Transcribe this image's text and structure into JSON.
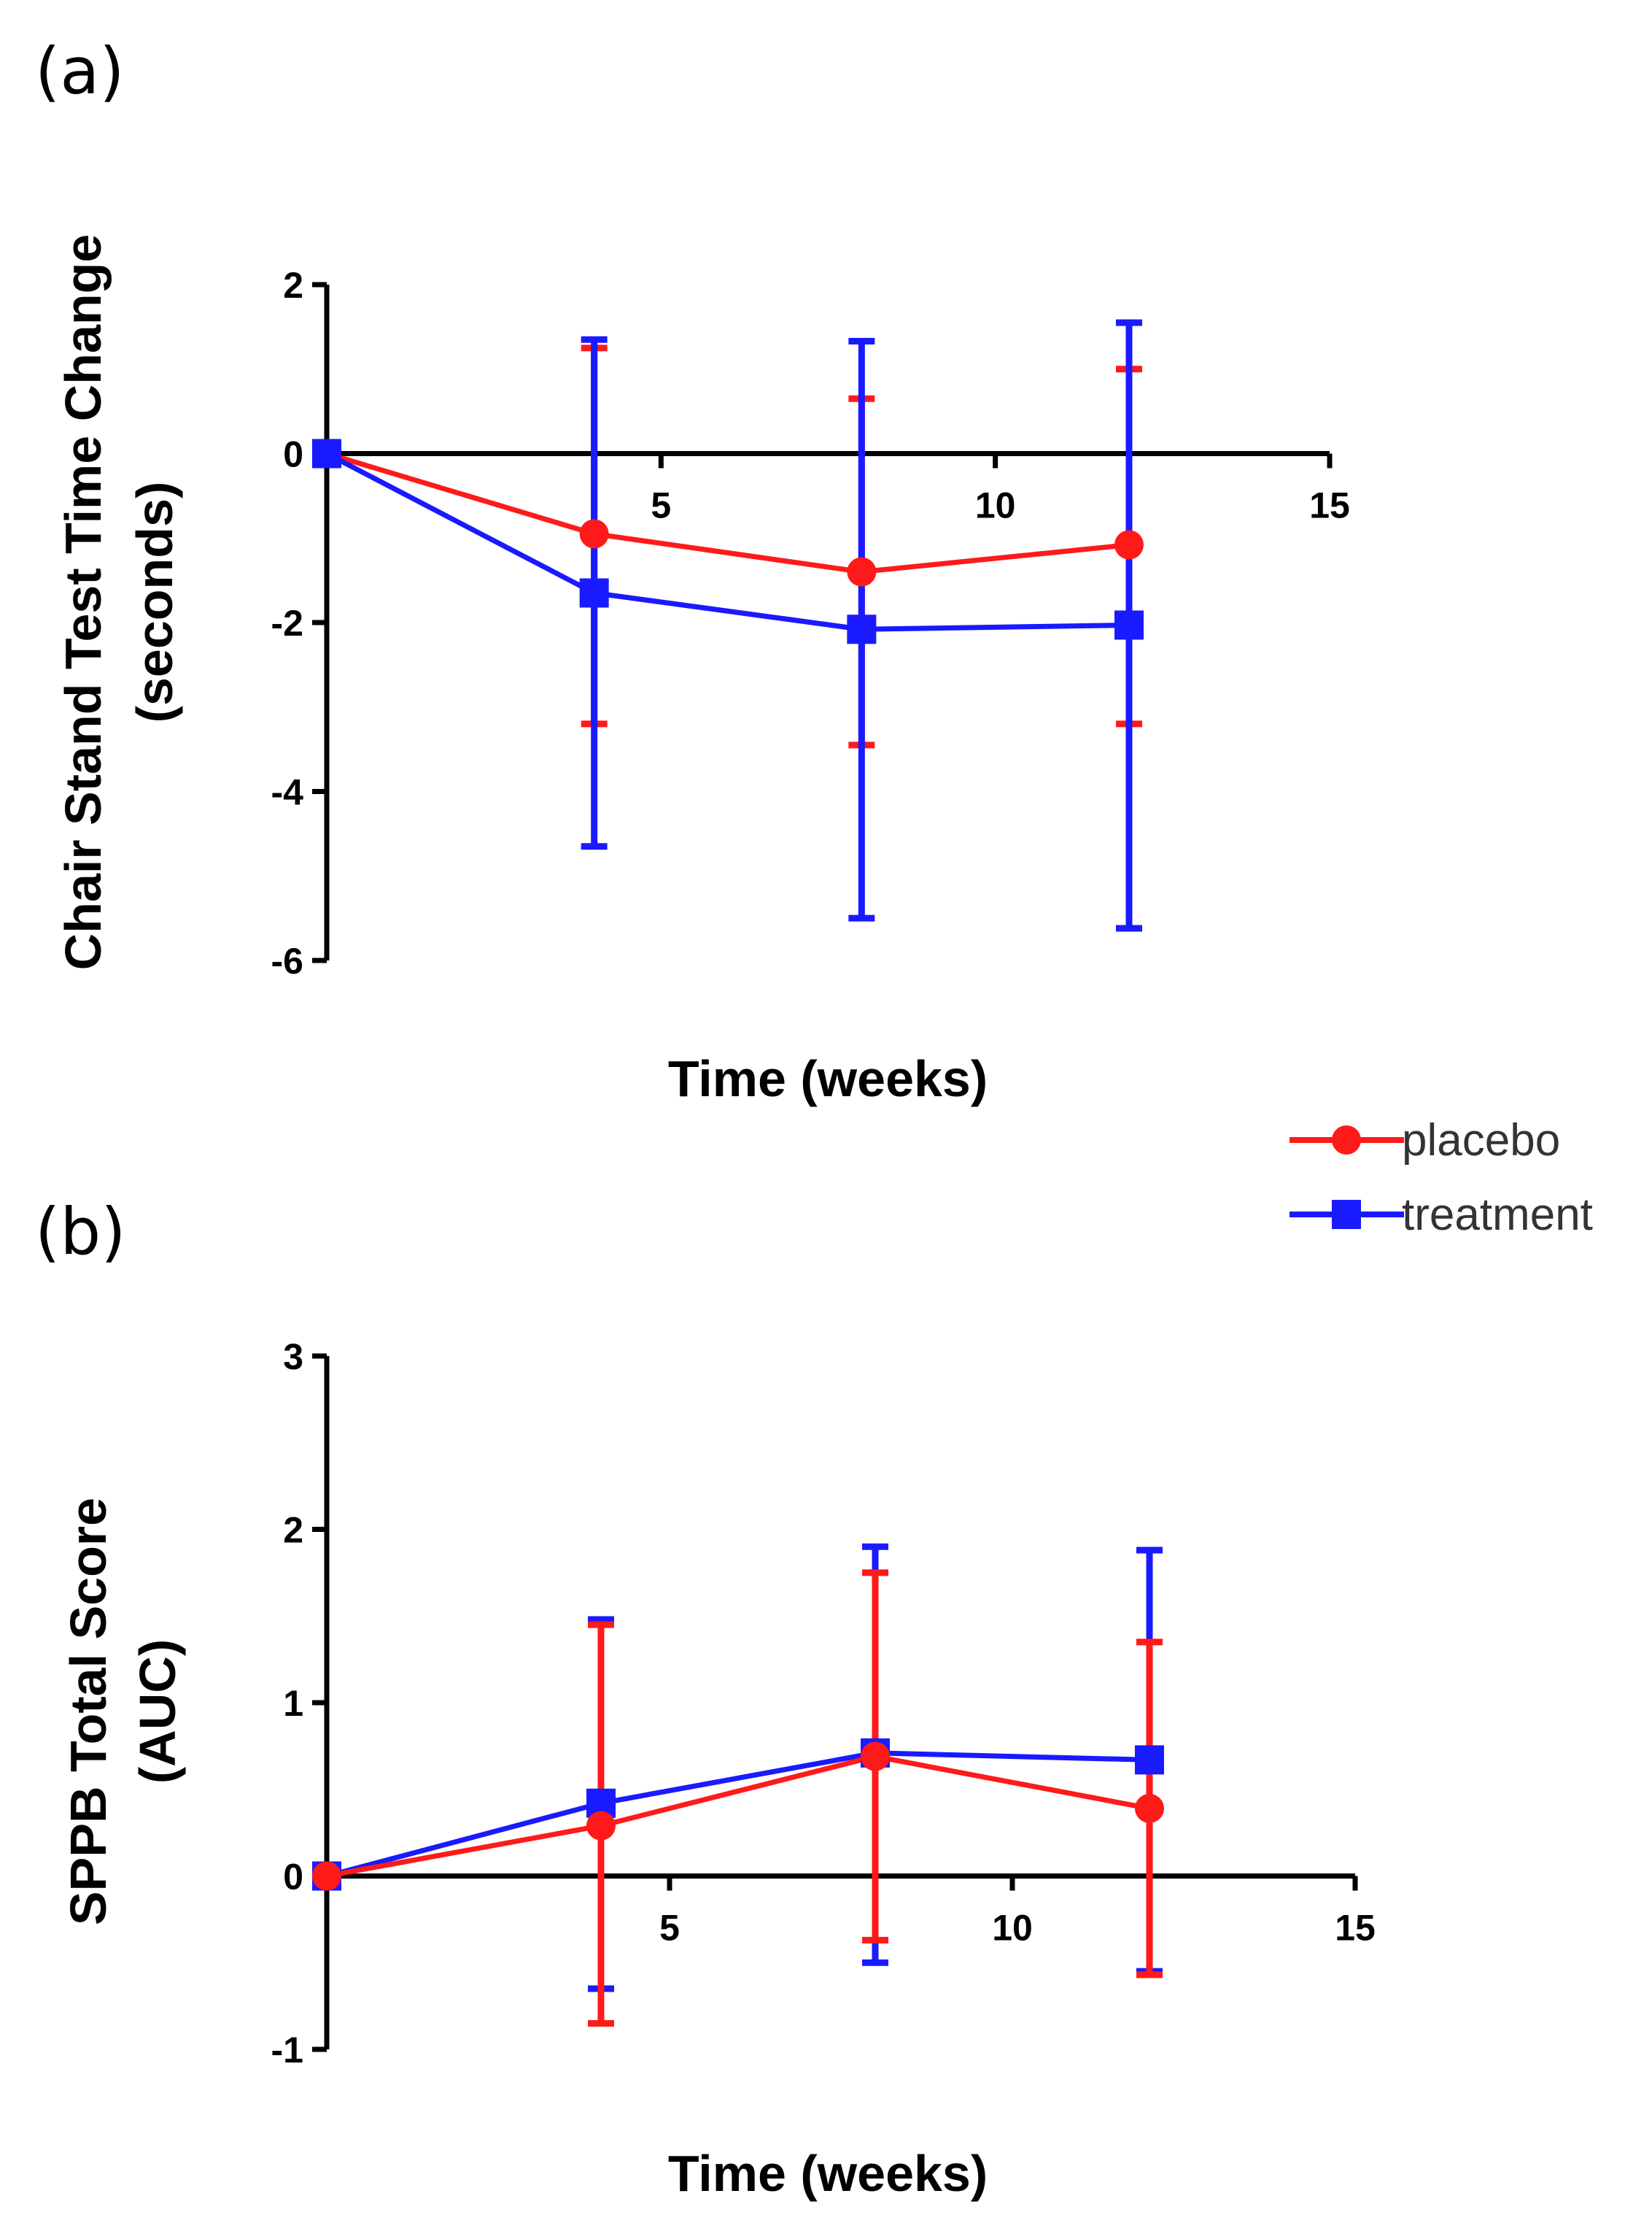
{
  "colors": {
    "placebo": "#ff1a1a",
    "treatment": "#1a1aff",
    "axis": "#000000"
  },
  "legend": [
    {
      "name": "placebo",
      "color": "#ff1a1a",
      "marker": "circle"
    },
    {
      "name": "treatment",
      "color": "#1a1aff",
      "marker": "square"
    }
  ],
  "chart_data": [
    {
      "panel_label": "(a)",
      "type": "line",
      "xlabel": "Time (weeks)",
      "ylabel_lines": [
        "Chair Stand Test Time Change",
        "(seconds)"
      ],
      "xlim": [
        0,
        15
      ],
      "ylim": [
        -6,
        2
      ],
      "x_ticks": [
        5,
        10,
        15
      ],
      "y_ticks": [
        2,
        0,
        -2,
        -4,
        -6
      ],
      "series": [
        {
          "name": "placebo",
          "marker": "circle",
          "color": "#ff1a1a",
          "points": [
            {
              "x": 0,
              "y": 0,
              "lo": 0,
              "hi": 0
            },
            {
              "x": 4,
              "y": -0.95,
              "lo": -3.2,
              "hi": 1.25
            },
            {
              "x": 8,
              "y": -1.4,
              "lo": -3.45,
              "hi": 0.65
            },
            {
              "x": 12,
              "y": -1.08,
              "lo": -3.2,
              "hi": 1.0
            }
          ]
        },
        {
          "name": "treatment",
          "marker": "square",
          "color": "#1a1aff",
          "points": [
            {
              "x": 0,
              "y": 0,
              "lo": 0,
              "hi": 0
            },
            {
              "x": 4,
              "y": -1.65,
              "lo": -4.65,
              "hi": 1.35
            },
            {
              "x": 8,
              "y": -2.08,
              "lo": -5.5,
              "hi": 1.33
            },
            {
              "x": 12,
              "y": -2.03,
              "lo": -5.62,
              "hi": 1.55
            }
          ]
        }
      ]
    },
    {
      "panel_label": "(b)",
      "type": "line",
      "xlabel": "Time (weeks)",
      "ylabel_lines": [
        "SPPB Total Score",
        "(AUC)"
      ],
      "xlim": [
        0,
        15
      ],
      "ylim": [
        -1,
        3
      ],
      "x_ticks": [
        5,
        10,
        15
      ],
      "y_ticks": [
        3,
        2,
        1,
        0,
        -1
      ],
      "series": [
        {
          "name": "treatment",
          "marker": "square",
          "color": "#1a1aff",
          "points": [
            {
              "x": 0,
              "y": 0,
              "lo": 0,
              "hi": 0
            },
            {
              "x": 4,
              "y": 0.42,
              "lo": -0.65,
              "hi": 1.48
            },
            {
              "x": 8,
              "y": 0.71,
              "lo": -0.5,
              "hi": 1.9
            },
            {
              "x": 12,
              "y": 0.67,
              "lo": -0.55,
              "hi": 1.88
            }
          ]
        },
        {
          "name": "placebo",
          "marker": "circle",
          "color": "#ff1a1a",
          "points": [
            {
              "x": 0,
              "y": 0,
              "lo": 0,
              "hi": 0
            },
            {
              "x": 4,
              "y": 0.29,
              "lo": -0.85,
              "hi": 1.45
            },
            {
              "x": 8,
              "y": 0.69,
              "lo": -0.37,
              "hi": 1.75
            },
            {
              "x": 12,
              "y": 0.39,
              "lo": -0.57,
              "hi": 1.35
            }
          ]
        }
      ]
    }
  ]
}
